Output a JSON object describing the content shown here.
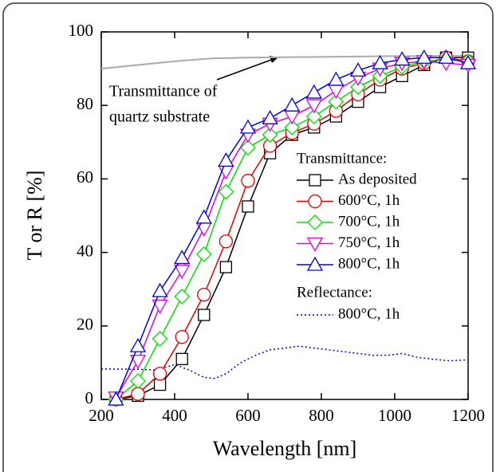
{
  "chart_data": {
    "type": "line",
    "xlabel": "Wavelength [nm]",
    "ylabel": "T or R [%]",
    "xlim": [
      200,
      1200
    ],
    "xticks": [
      200,
      400,
      600,
      800,
      1000,
      1200
    ],
    "ylim": [
      0,
      100
    ],
    "yticks": [
      0,
      20,
      40,
      60,
      80,
      100
    ],
    "annotation": [
      "Transmittance of",
      "quartz substrate"
    ],
    "legend_headers": [
      "Transmittance:",
      "Reflectance:"
    ],
    "x": [
      240,
      300,
      360,
      420,
      480,
      540,
      600,
      660,
      720,
      780,
      840,
      900,
      960,
      1020,
      1080,
      1140,
      1200
    ],
    "transmittance_series": [
      {
        "name": "As deposited",
        "color": "#000000",
        "marker": "square",
        "values": [
          0,
          1,
          4,
          11,
          23,
          36,
          52.5,
          67,
          72,
          74,
          77,
          81,
          85,
          88,
          91,
          93,
          93
        ]
      },
      {
        "name": "600°C, 1h",
        "color": "#e00000",
        "marker": "circle",
        "values": [
          0,
          1.5,
          7,
          17,
          28.5,
          43,
          59.5,
          69,
          72.5,
          75,
          78.5,
          83,
          87,
          90,
          91.5,
          93,
          92
        ]
      },
      {
        "name": "700°C, 1h",
        "color": "#00e000",
        "marker": "diamond",
        "values": [
          0,
          5,
          16.5,
          28,
          39.5,
          56.5,
          68.5,
          72,
          74,
          77,
          81,
          85,
          88,
          90.5,
          92,
          92.5,
          92
        ]
      },
      {
        "name": "750°C, 1h",
        "color": "#e000e0",
        "marker": "triangle-down",
        "values": [
          0.5,
          10.5,
          25.5,
          35,
          46.5,
          62,
          72,
          75,
          77,
          80,
          84,
          87.5,
          90,
          91.5,
          92,
          91.5,
          91
        ]
      },
      {
        "name": "800°C, 1h",
        "color": "#0000e0",
        "marker": "triangle-up",
        "values": [
          0,
          14.5,
          29.5,
          38.5,
          49.5,
          65,
          74,
          76.5,
          80,
          83.5,
          87,
          89.5,
          91.5,
          92.5,
          93,
          93,
          91.5
        ]
      }
    ],
    "reflectance_series": [
      {
        "name": "800°C, 1h",
        "color": "#0000cc",
        "dash": "dotted",
        "x": [
          200,
          300,
          350,
          400,
          440,
          480,
          510,
          540,
          580,
          620,
          660,
          700,
          740,
          780,
          820,
          860,
          900,
          940,
          980,
          1020,
          1060,
          1100,
          1150,
          1200
        ],
        "values": [
          8.3,
          8.2,
          8,
          9.5,
          8,
          6,
          5.7,
          7,
          10,
          12,
          13.5,
          14,
          14.5,
          14,
          13.5,
          13,
          12.5,
          12,
          12,
          12.5,
          11.5,
          11,
          10.5,
          10.8
        ]
      }
    ],
    "reference_series": {
      "color": "#aaaaaa",
      "x": [
        200,
        300,
        400,
        500,
        600,
        800,
        1000,
        1200
      ],
      "values": [
        90,
        91,
        92,
        92.8,
        93,
        93.2,
        93.4,
        93.5
      ]
    }
  }
}
